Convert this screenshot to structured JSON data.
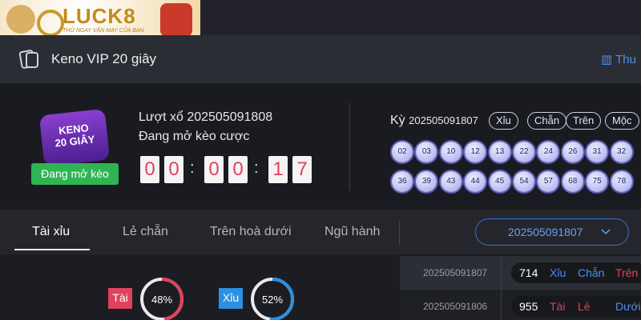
{
  "logo": {
    "brand": "LUCK8",
    "tagline": "THỬ NGAY VẬN MAY CỦA BẠN"
  },
  "header": {
    "title": "Keno VIP 20 giây",
    "link": "Thu"
  },
  "draw": {
    "badge": {
      "line1": "KENO",
      "line2": "20 GIÂY"
    },
    "status_button": "Đang mở kèo",
    "round": "Lượt xổ 202505091808",
    "status": "Đang mở kèo cược",
    "countdown": {
      "digits": [
        0,
        0,
        0,
        0,
        1,
        7
      ],
      "separator": ":"
    }
  },
  "previous": {
    "label": "Kỳ",
    "period": "202505091807",
    "tags": [
      "Xỉu",
      "Chẵn",
      "Trên",
      "Mộc"
    ],
    "balls": [
      "02",
      "03",
      "10",
      "12",
      "13",
      "22",
      "24",
      "26",
      "31",
      "32",
      "36",
      "39",
      "43",
      "44",
      "45",
      "54",
      "57",
      "68",
      "75",
      "78"
    ]
  },
  "tabs": [
    "Tài xỉu",
    "Lẻ chẵn",
    "Trên hoà dưới",
    "Ngũ hành"
  ],
  "selector": "202505091807",
  "stats": [
    {
      "label": "Tài",
      "percent": {
        "value": 48,
        "label": "48%"
      }
    },
    {
      "label": "Xỉu",
      "percent": {
        "value": 52,
        "label": "52%"
      }
    }
  ],
  "history": [
    {
      "period": "202505091807",
      "sum": 714,
      "results": [
        "Xỉu",
        "Chẵn",
        "Trên"
      ]
    },
    {
      "period": "202505091806",
      "sum": 955,
      "results": [
        "Tài",
        "Lẻ",
        "Dưới"
      ]
    }
  ]
}
